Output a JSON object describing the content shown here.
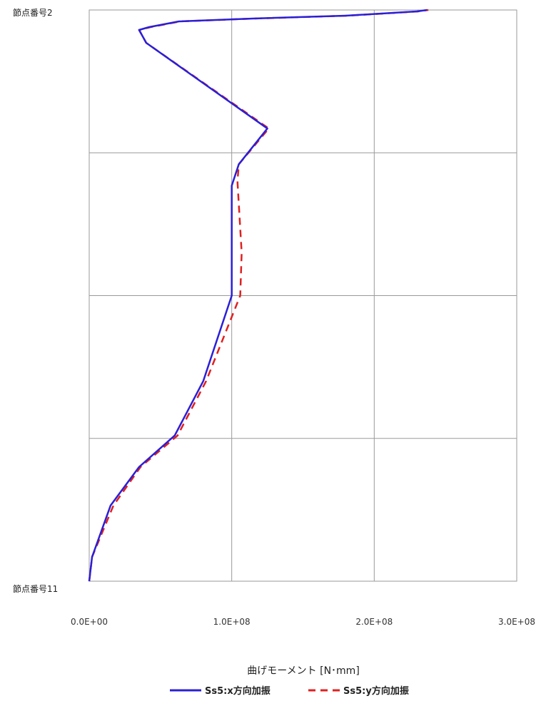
{
  "chart_data": {
    "type": "line",
    "orientation": "vertical-profile",
    "x_axis": {
      "label": "曲げモーメント [N･mm]",
      "min": 0,
      "max": 300000000,
      "ticks": [
        0,
        100000000,
        200000000,
        300000000
      ],
      "tick_labels": [
        "0.0E+00",
        "1.0E+08",
        "2.0E+08",
        "3.0E+08"
      ]
    },
    "y_axis": {
      "top_label": "節点番号2",
      "bottom_label": "節点番号11",
      "min": 0,
      "max": 4,
      "gridlines": [
        0,
        1,
        2,
        3,
        4
      ]
    },
    "grid": true,
    "legend_position": "bottom",
    "series": [
      {
        "name": "Ss5:x方向加振",
        "color": "#2b1fd6",
        "dash": "solid",
        "points": [
          {
            "m": 0,
            "d": 4.0
          },
          {
            "m": 2000000,
            "d": 3.83
          },
          {
            "m": 15000000,
            "d": 3.47
          },
          {
            "m": 35000000,
            "d": 3.2
          },
          {
            "m": 60000000,
            "d": 2.98
          },
          {
            "m": 80000000,
            "d": 2.6
          },
          {
            "m": 100000000,
            "d": 2.0
          },
          {
            "m": 100000000,
            "d": 1.23
          },
          {
            "m": 105000000,
            "d": 1.08
          },
          {
            "m": 125000000,
            "d": 0.83
          },
          {
            "m": 40000000,
            "d": 0.23
          },
          {
            "m": 35000000,
            "d": 0.14
          },
          {
            "m": 42000000,
            "d": 0.12
          },
          {
            "m": 63000000,
            "d": 0.08
          },
          {
            "m": 115000000,
            "d": 0.06
          },
          {
            "m": 180000000,
            "d": 0.04
          },
          {
            "m": 230000000,
            "d": 0.01
          },
          {
            "m": 237000000,
            "d": 0.0
          }
        ]
      },
      {
        "name": "Ss5:y方向加振",
        "color": "#e02020",
        "dash": "10,7",
        "points": [
          {
            "m": 0,
            "d": 4.0
          },
          {
            "m": 2000000,
            "d": 3.83
          },
          {
            "m": 17000000,
            "d": 3.47
          },
          {
            "m": 36000000,
            "d": 3.2
          },
          {
            "m": 62000000,
            "d": 2.98
          },
          {
            "m": 82000000,
            "d": 2.6
          },
          {
            "m": 106000000,
            "d": 2.0
          },
          {
            "m": 107000000,
            "d": 1.7
          },
          {
            "m": 104000000,
            "d": 1.2
          },
          {
            "m": 105000000,
            "d": 1.08
          },
          {
            "m": 126000000,
            "d": 0.83
          },
          {
            "m": 40000000,
            "d": 0.23
          },
          {
            "m": 35000000,
            "d": 0.14
          },
          {
            "m": 43000000,
            "d": 0.12
          },
          {
            "m": 64000000,
            "d": 0.08
          },
          {
            "m": 116000000,
            "d": 0.06
          },
          {
            "m": 181000000,
            "d": 0.04
          },
          {
            "m": 231000000,
            "d": 0.01
          },
          {
            "m": 238000000,
            "d": 0.0
          }
        ]
      }
    ]
  }
}
